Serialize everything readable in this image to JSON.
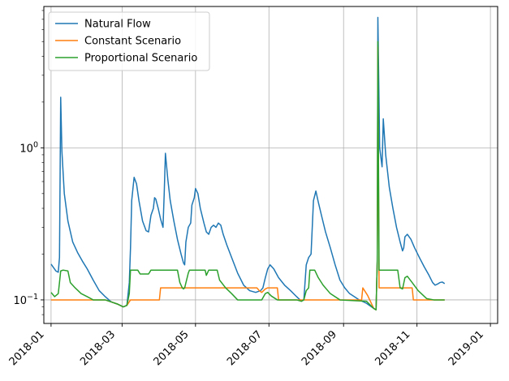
{
  "chart_data": {
    "type": "line",
    "title": "",
    "xlabel": "",
    "ylabel": "",
    "yscale": "log",
    "ylim": [
      0.07,
      8.5
    ],
    "xlim_days": [
      -6,
      371
    ],
    "grid": true,
    "legend_position": "top-left",
    "x_ticks": [
      {
        "day": 0,
        "label": "2018-01"
      },
      {
        "day": 59,
        "label": "2018-03"
      },
      {
        "day": 120,
        "label": "2018-05"
      },
      {
        "day": 181,
        "label": "2018-07"
      },
      {
        "day": 243,
        "label": "2018-09"
      },
      {
        "day": 304,
        "label": "2018-11"
      },
      {
        "day": 365,
        "label": "2019-01"
      }
    ],
    "y_ticks": [
      {
        "value": 0.1,
        "base": "10",
        "exp": "−1"
      },
      {
        "value": 1,
        "base": "10",
        "exp": "0"
      }
    ],
    "series": [
      {
        "name": "Natural Flow",
        "color": "#1f77b4",
        "points": [
          [
            0,
            0.172
          ],
          [
            4,
            0.155
          ],
          [
            6,
            0.152
          ],
          [
            7,
            0.19
          ],
          [
            8,
            2.15
          ],
          [
            9,
            0.95
          ],
          [
            11,
            0.5
          ],
          [
            14,
            0.33
          ],
          [
            18,
            0.24
          ],
          [
            22,
            0.205
          ],
          [
            26,
            0.18
          ],
          [
            30,
            0.16
          ],
          [
            35,
            0.135
          ],
          [
            40,
            0.115
          ],
          [
            45,
            0.105
          ],
          [
            50,
            0.097
          ],
          [
            55,
            0.094
          ],
          [
            60,
            0.09
          ],
          [
            63,
            0.092
          ],
          [
            65,
            0.13
          ],
          [
            66,
            0.22
          ],
          [
            67,
            0.45
          ],
          [
            69,
            0.64
          ],
          [
            71,
            0.58
          ],
          [
            73,
            0.45
          ],
          [
            76,
            0.33
          ],
          [
            79,
            0.285
          ],
          [
            81,
            0.28
          ],
          [
            83,
            0.36
          ],
          [
            85,
            0.4
          ],
          [
            86,
            0.47
          ],
          [
            87,
            0.46
          ],
          [
            89,
            0.4
          ],
          [
            91,
            0.34
          ],
          [
            93,
            0.3
          ],
          [
            94,
            0.5
          ],
          [
            95,
            0.92
          ],
          [
            97,
            0.62
          ],
          [
            99,
            0.45
          ],
          [
            102,
            0.33
          ],
          [
            105,
            0.25
          ],
          [
            108,
            0.2
          ],
          [
            110,
            0.175
          ],
          [
            111,
            0.17
          ],
          [
            112,
            0.24
          ],
          [
            114,
            0.3
          ],
          [
            116,
            0.32
          ],
          [
            117,
            0.42
          ],
          [
            119,
            0.47
          ],
          [
            120,
            0.54
          ],
          [
            122,
            0.5
          ],
          [
            124,
            0.4
          ],
          [
            127,
            0.32
          ],
          [
            129,
            0.28
          ],
          [
            131,
            0.27
          ],
          [
            133,
            0.3
          ],
          [
            135,
            0.31
          ],
          [
            137,
            0.3
          ],
          [
            139,
            0.32
          ],
          [
            141,
            0.31
          ],
          [
            143,
            0.27
          ],
          [
            146,
            0.23
          ],
          [
            150,
            0.19
          ],
          [
            155,
            0.15
          ],
          [
            160,
            0.125
          ],
          [
            165,
            0.115
          ],
          [
            170,
            0.112
          ],
          [
            174,
            0.115
          ],
          [
            176,
            0.12
          ],
          [
            178,
            0.14
          ],
          [
            180,
            0.16
          ],
          [
            182,
            0.17
          ],
          [
            185,
            0.16
          ],
          [
            189,
            0.14
          ],
          [
            194,
            0.125
          ],
          [
            199,
            0.115
          ],
          [
            204,
            0.105
          ],
          [
            208,
            0.098
          ],
          [
            210,
            0.1
          ],
          [
            212,
            0.17
          ],
          [
            214,
            0.19
          ],
          [
            216,
            0.2
          ],
          [
            218,
            0.45
          ],
          [
            220,
            0.52
          ],
          [
            222,
            0.44
          ],
          [
            225,
            0.35
          ],
          [
            228,
            0.28
          ],
          [
            232,
            0.22
          ],
          [
            236,
            0.17
          ],
          [
            240,
            0.135
          ],
          [
            244,
            0.12
          ],
          [
            248,
            0.11
          ],
          [
            252,
            0.105
          ],
          [
            256,
            0.1
          ],
          [
            262,
            0.095
          ],
          [
            268,
            0.088
          ],
          [
            270,
            0.086
          ],
          [
            271,
            0.18
          ],
          [
            271.5,
            7.2
          ],
          [
            273,
            1.0
          ],
          [
            275,
            0.75
          ],
          [
            276,
            1.55
          ],
          [
            278,
            0.9
          ],
          [
            281,
            0.55
          ],
          [
            284,
            0.4
          ],
          [
            287,
            0.3
          ],
          [
            290,
            0.24
          ],
          [
            292,
            0.21
          ],
          [
            293,
            0.22
          ],
          [
            294,
            0.26
          ],
          [
            296,
            0.27
          ],
          [
            299,
            0.25
          ],
          [
            302,
            0.22
          ],
          [
            306,
            0.19
          ],
          [
            310,
            0.165
          ],
          [
            314,
            0.145
          ],
          [
            317,
            0.13
          ],
          [
            319,
            0.125
          ],
          [
            321,
            0.127
          ],
          [
            323,
            0.13
          ],
          [
            325,
            0.131
          ],
          [
            327,
            0.128
          ]
        ]
      },
      {
        "name": "Constant Scenario",
        "color": "#ff7f0e",
        "points": [
          [
            0,
            0.1
          ],
          [
            45,
            0.1
          ],
          [
            50,
            0.097
          ],
          [
            55,
            0.094
          ],
          [
            60,
            0.09
          ],
          [
            63,
            0.092
          ],
          [
            66,
            0.1
          ],
          [
            90,
            0.1
          ],
          [
            91,
            0.12
          ],
          [
            171,
            0.12
          ],
          [
            173,
            0.115
          ],
          [
            175,
            0.112
          ],
          [
            178,
            0.118
          ],
          [
            180,
            0.12
          ],
          [
            188,
            0.12
          ],
          [
            189,
            0.1
          ],
          [
            258,
            0.1
          ],
          [
            259,
            0.12
          ],
          [
            263,
            0.107
          ],
          [
            268,
            0.088
          ],
          [
            270,
            0.086
          ],
          [
            271,
            0.18
          ],
          [
            271.5,
            4.6
          ],
          [
            272.5,
            0.12
          ],
          [
            300,
            0.12
          ],
          [
            301,
            0.1
          ],
          [
            327,
            0.1
          ]
        ]
      },
      {
        "name": "Proportional Scenario",
        "color": "#2ca02c",
        "points": [
          [
            0,
            0.112
          ],
          [
            3,
            0.105
          ],
          [
            6,
            0.11
          ],
          [
            7,
            0.13
          ],
          [
            8,
            0.155
          ],
          [
            10,
            0.157
          ],
          [
            14,
            0.155
          ],
          [
            16,
            0.13
          ],
          [
            20,
            0.12
          ],
          [
            25,
            0.11
          ],
          [
            30,
            0.105
          ],
          [
            35,
            0.1
          ],
          [
            40,
            0.1
          ],
          [
            45,
            0.1
          ],
          [
            50,
            0.097
          ],
          [
            55,
            0.094
          ],
          [
            60,
            0.09
          ],
          [
            63,
            0.092
          ],
          [
            65,
            0.11
          ],
          [
            66,
            0.157
          ],
          [
            72,
            0.157
          ],
          [
            74,
            0.148
          ],
          [
            81,
            0.148
          ],
          [
            83,
            0.157
          ],
          [
            105,
            0.157
          ],
          [
            107,
            0.13
          ],
          [
            109,
            0.12
          ],
          [
            110,
            0.118
          ],
          [
            111,
            0.12
          ],
          [
            114,
            0.15
          ],
          [
            115,
            0.157
          ],
          [
            128,
            0.157
          ],
          [
            129,
            0.145
          ],
          [
            131,
            0.157
          ],
          [
            138,
            0.157
          ],
          [
            140,
            0.135
          ],
          [
            145,
            0.12
          ],
          [
            150,
            0.11
          ],
          [
            155,
            0.1
          ],
          [
            170,
            0.1
          ],
          [
            172,
            0.1
          ],
          [
            175,
            0.1
          ],
          [
            178,
            0.11
          ],
          [
            180,
            0.112
          ],
          [
            183,
            0.106
          ],
          [
            188,
            0.1
          ],
          [
            204,
            0.1
          ],
          [
            208,
            0.098
          ],
          [
            210,
            0.1
          ],
          [
            212,
            0.115
          ],
          [
            214,
            0.12
          ],
          [
            215,
            0.157
          ],
          [
            219,
            0.157
          ],
          [
            222,
            0.14
          ],
          [
            226,
            0.125
          ],
          [
            232,
            0.11
          ],
          [
            240,
            0.1
          ],
          [
            262,
            0.098
          ],
          [
            268,
            0.088
          ],
          [
            270,
            0.086
          ],
          [
            271,
            0.18
          ],
          [
            271.5,
            5.0
          ],
          [
            272.5,
            0.157
          ],
          [
            288,
            0.157
          ],
          [
            290,
            0.12
          ],
          [
            292,
            0.118
          ],
          [
            294,
            0.14
          ],
          [
            296,
            0.143
          ],
          [
            300,
            0.13
          ],
          [
            305,
            0.115
          ],
          [
            312,
            0.102
          ],
          [
            318,
            0.1
          ],
          [
            327,
            0.1
          ]
        ]
      }
    ]
  }
}
